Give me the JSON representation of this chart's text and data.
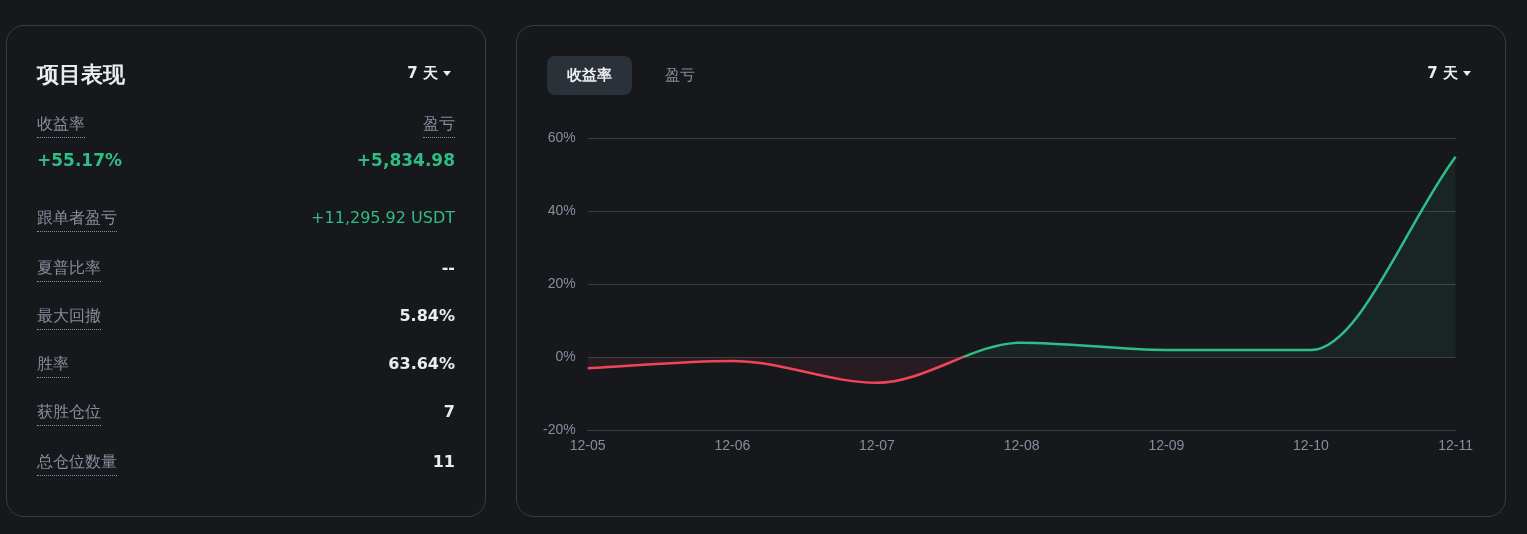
{
  "chart_data": [
    {
      "type": "other",
      "title": "项目表现",
      "subtitle": "7 天",
      "annotations": [
        "收益率",
        "盈亏",
        "+55.17%",
        "+5,834.98",
        "跟单者盈亏",
        "+11,295.92 USDT",
        "夏普比率",
        "--",
        "最大回撤",
        "5.84%",
        "胜率",
        "63.64%",
        "获胜仓位",
        "7",
        "总仓位数量",
        "11"
      ]
    },
    {
      "type": "area",
      "subtitle": "7 天",
      "annotations": [
        "收益率",
        "盈亏"
      ],
      "categories": [
        "12-05",
        "12-06",
        "12-07",
        "12-08",
        "12-09",
        "12-10",
        "12-11"
      ],
      "series": [
        {
          "values": [
            -3,
            -1,
            -7,
            4,
            2,
            2,
            55
          ],
          "colors": [
            "#f0445a",
            "#f0445a",
            "#f0445a",
            "#2ebd85",
            "#2ebd85",
            "#2ebd85",
            "#2ebd85"
          ]
        }
      ],
      "ylim": [
        -20,
        60
      ],
      "yticks": [
        {
          "value": -20,
          "label": "-20%"
        },
        {
          "value": 0,
          "label": "0%"
        },
        {
          "value": 20,
          "label": "20%"
        },
        {
          "value": 40,
          "label": "40%"
        },
        {
          "value": 60,
          "label": "60%"
        }
      ],
      "grid": "y",
      "legend": false,
      "marker": "none"
    }
  ]
}
